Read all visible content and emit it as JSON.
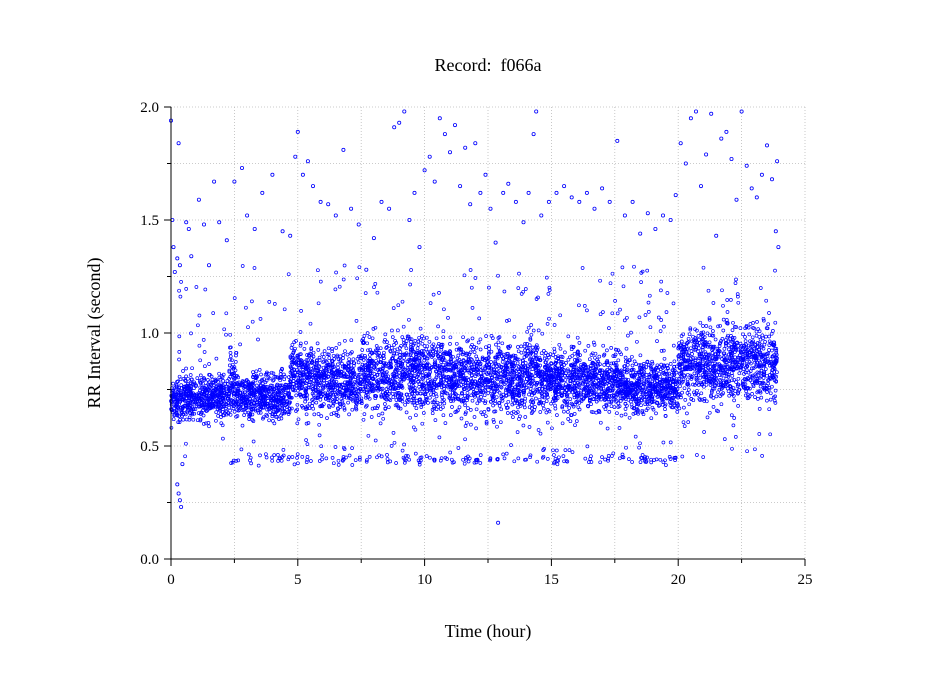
{
  "chart_data": {
    "type": "scatter",
    "title": "Record:  f066a",
    "xlabel": "Time (hour)",
    "ylabel": "RR Interval (second)",
    "xlim": [
      0,
      25
    ],
    "ylim": [
      0.0,
      2.0
    ],
    "xticks": [
      0,
      5,
      10,
      15,
      20,
      25
    ],
    "xtick_labels": [
      "0",
      "5",
      "10",
      "15",
      "20",
      "25"
    ],
    "yticks": [
      0.0,
      0.5,
      1.0,
      1.5,
      2.0
    ],
    "ytick_labels": [
      "0.0",
      "0.5",
      "1.0",
      "1.5",
      "2.0"
    ],
    "x_minor_ticks": [
      2.5,
      7.5,
      12.5,
      17.5,
      22.5
    ],
    "y_minor_ticks": [
      0.25,
      0.75,
      1.25,
      1.75
    ],
    "grid": true,
    "marker_color": "#0000ff",
    "axis_color": "#000000",
    "grid_color": "#bbbbbb",
    "series": [
      {
        "points": [
          [
            0.0,
            1.94
          ],
          [
            0.05,
            1.5
          ],
          [
            0.1,
            1.38
          ],
          [
            0.15,
            1.27
          ],
          [
            0.25,
            1.33
          ],
          [
            0.3,
            1.84
          ],
          [
            0.35,
            1.3
          ],
          [
            0.4,
            0.23
          ],
          [
            0.35,
            0.26
          ],
          [
            0.3,
            0.29
          ],
          [
            0.25,
            0.33
          ],
          [
            0.45,
            0.42
          ],
          [
            0.6,
            1.49
          ],
          [
            0.7,
            1.46
          ],
          [
            0.8,
            1.34
          ],
          [
            1.1,
            1.59
          ],
          [
            1.3,
            1.48
          ],
          [
            1.5,
            1.3
          ],
          [
            1.7,
            1.67
          ],
          [
            1.9,
            1.49
          ],
          [
            2.2,
            1.41
          ],
          [
            2.5,
            1.67
          ],
          [
            2.8,
            1.73
          ],
          [
            3.0,
            1.52
          ],
          [
            3.3,
            1.46
          ],
          [
            3.6,
            1.62
          ],
          [
            4.0,
            1.7
          ],
          [
            4.4,
            1.45
          ],
          [
            4.7,
            1.43
          ],
          [
            4.9,
            1.78
          ],
          [
            5.0,
            1.89
          ],
          [
            5.2,
            1.7
          ],
          [
            5.4,
            1.76
          ],
          [
            5.6,
            1.65
          ],
          [
            5.9,
            1.58
          ],
          [
            6.2,
            1.57
          ],
          [
            6.5,
            1.52
          ],
          [
            6.8,
            1.81
          ],
          [
            7.1,
            1.55
          ],
          [
            7.4,
            1.48
          ],
          [
            7.7,
            1.28
          ],
          [
            8.0,
            1.42
          ],
          [
            8.3,
            1.58
          ],
          [
            8.6,
            1.55
          ],
          [
            8.8,
            1.91
          ],
          [
            9.0,
            1.93
          ],
          [
            9.2,
            1.98
          ],
          [
            9.4,
            1.5
          ],
          [
            9.6,
            1.62
          ],
          [
            9.8,
            1.38
          ],
          [
            10.0,
            1.72
          ],
          [
            10.2,
            1.78
          ],
          [
            10.4,
            1.67
          ],
          [
            10.6,
            1.95
          ],
          [
            10.8,
            1.88
          ],
          [
            11.0,
            1.8
          ],
          [
            11.2,
            1.92
          ],
          [
            11.4,
            1.65
          ],
          [
            11.6,
            1.82
          ],
          [
            11.8,
            1.57
          ],
          [
            12.0,
            1.84
          ],
          [
            12.2,
            1.62
          ],
          [
            12.4,
            1.7
          ],
          [
            12.6,
            1.55
          ],
          [
            12.8,
            1.4
          ],
          [
            12.9,
            0.16
          ],
          [
            13.1,
            1.62
          ],
          [
            13.3,
            1.66
          ],
          [
            13.6,
            1.58
          ],
          [
            13.9,
            1.49
          ],
          [
            14.1,
            1.62
          ],
          [
            14.3,
            1.88
          ],
          [
            14.4,
            1.98
          ],
          [
            14.6,
            1.52
          ],
          [
            14.9,
            1.58
          ],
          [
            15.2,
            1.62
          ],
          [
            15.5,
            1.65
          ],
          [
            15.8,
            1.6
          ],
          [
            16.1,
            1.58
          ],
          [
            16.4,
            1.62
          ],
          [
            16.7,
            1.55
          ],
          [
            17.0,
            1.64
          ],
          [
            17.3,
            1.58
          ],
          [
            17.6,
            1.85
          ],
          [
            17.9,
            1.52
          ],
          [
            18.2,
            1.58
          ],
          [
            18.5,
            1.44
          ],
          [
            18.8,
            1.53
          ],
          [
            19.1,
            1.46
          ],
          [
            19.4,
            1.52
          ],
          [
            19.7,
            1.5
          ],
          [
            19.9,
            1.61
          ],
          [
            20.1,
            1.84
          ],
          [
            20.3,
            1.75
          ],
          [
            20.5,
            1.95
          ],
          [
            20.7,
            1.98
          ],
          [
            20.9,
            1.65
          ],
          [
            21.1,
            1.79
          ],
          [
            21.3,
            1.97
          ],
          [
            21.5,
            1.43
          ],
          [
            21.7,
            1.86
          ],
          [
            21.9,
            1.89
          ],
          [
            22.1,
            1.77
          ],
          [
            22.3,
            1.59
          ],
          [
            22.5,
            1.98
          ],
          [
            22.7,
            1.74
          ],
          [
            22.9,
            1.64
          ],
          [
            23.1,
            1.6
          ],
          [
            23.3,
            1.7
          ],
          [
            23.5,
            1.83
          ],
          [
            23.7,
            1.68
          ],
          [
            23.85,
            1.45
          ],
          [
            23.9,
            1.76
          ],
          [
            23.95,
            1.38
          ]
        ]
      }
    ],
    "dense_band": {
      "segments": [
        {
          "x": [
            0.0,
            0.4
          ],
          "mid": 0.7,
          "spread": 0.1
        },
        {
          "x": [
            0.4,
            1.5
          ],
          "mid": 0.72,
          "spread": 0.13
        },
        {
          "x": [
            1.5,
            2.3
          ],
          "mid": 0.72,
          "spread": 0.12
        },
        {
          "x": [
            2.3,
            2.6
          ],
          "mid": 0.78,
          "spread": 0.18
        },
        {
          "x": [
            2.6,
            4.7
          ],
          "mid": 0.72,
          "spread": 0.12
        },
        {
          "x": [
            4.7,
            5.3
          ],
          "mid": 0.8,
          "spread": 0.19
        },
        {
          "x": [
            5.3,
            7.5
          ],
          "mid": 0.78,
          "spread": 0.17
        },
        {
          "x": [
            7.5,
            11.0
          ],
          "mid": 0.82,
          "spread": 0.22
        },
        {
          "x": [
            11.0,
            14.0
          ],
          "mid": 0.8,
          "spread": 0.2
        },
        {
          "x": [
            14.0,
            14.5
          ],
          "mid": 0.83,
          "spread": 0.21
        },
        {
          "x": [
            14.5,
            17.7
          ],
          "mid": 0.79,
          "spread": 0.17
        },
        {
          "x": [
            17.7,
            20.0
          ],
          "mid": 0.76,
          "spread": 0.14
        },
        {
          "x": [
            20.0,
            23.9
          ],
          "mid": 0.86,
          "spread": 0.22
        }
      ],
      "low_band": {
        "x": [
          2.2,
          20.0
        ],
        "y": 0.44,
        "spread": 0.02
      },
      "scatter_band": {
        "x": [
          0.3,
          23.9
        ],
        "y_range": [
          0.45,
          1.3
        ]
      }
    }
  }
}
